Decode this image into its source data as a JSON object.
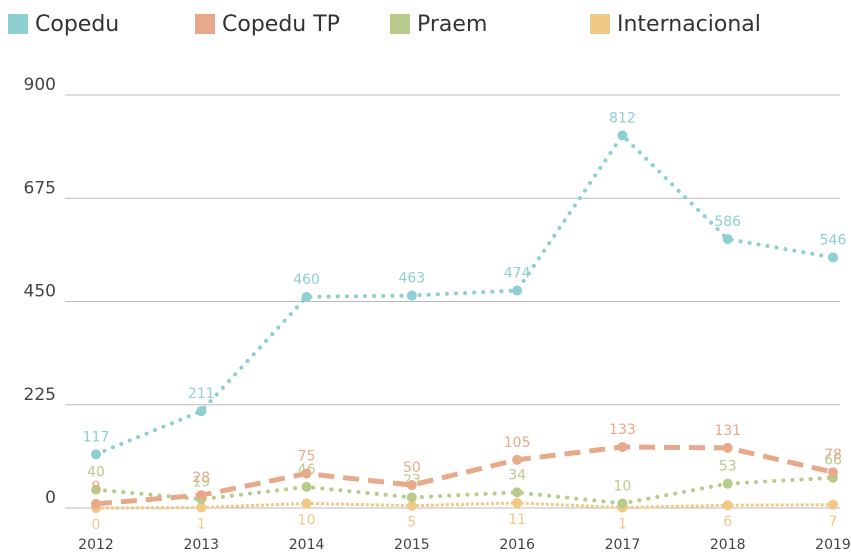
{
  "chart_data": {
    "type": "line",
    "categories": [
      "2012",
      "2013",
      "2014",
      "2015",
      "2016",
      "2017",
      "2018",
      "2019"
    ],
    "series": [
      {
        "name": "Copedu",
        "color": "#8ecfd1",
        "style": "dotted",
        "values": [
          117,
          211,
          460,
          463,
          474,
          812,
          586,
          546
        ]
      },
      {
        "name": "Copedu TP",
        "color": "#e8a88a",
        "style": "dashed",
        "values": [
          9,
          28,
          75,
          50,
          105,
          133,
          131,
          78
        ]
      },
      {
        "name": "Praem",
        "color": "#b7cc8a",
        "style": "dotted",
        "values": [
          40,
          19,
          46,
          23,
          34,
          10,
          53,
          66
        ]
      },
      {
        "name": "Internacional",
        "color": "#f0c987",
        "style": "thin",
        "values": [
          0,
          1,
          10,
          5,
          11,
          1,
          6,
          7
        ]
      }
    ],
    "ylim": [
      0,
      900
    ],
    "yticks": [
      0,
      225,
      450,
      675,
      900
    ],
    "grid": true,
    "legend": "top"
  }
}
